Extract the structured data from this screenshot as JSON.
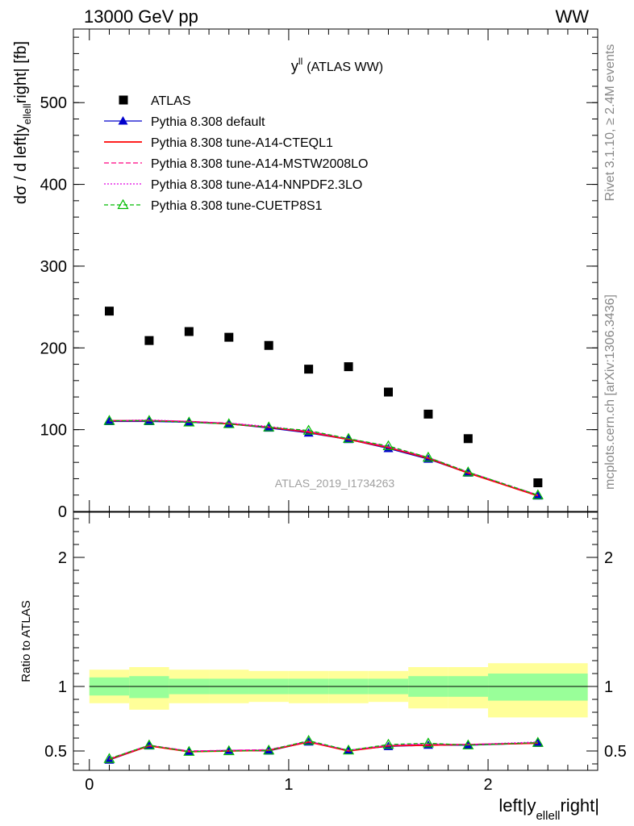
{
  "header": {
    "process": "13000 GeV pp",
    "channel": "WW"
  },
  "side_labels": {
    "rivet": "Rivet 3.1.10, ≥ 2.4M events",
    "mcplots": "mcplots.cern.ch [arXiv:1306.3436]"
  },
  "analysis_id": "ATLAS_2019_I1734263",
  "colors": {
    "data": "#000000",
    "default": "#0000cc",
    "cteql1": "#ff0000",
    "mstw": "#ff0080",
    "nnpdf": "#e000e0",
    "cuetp8s1": "#00bb00",
    "band_stat": "#99ff99",
    "band_total": "#ffff99"
  },
  "chart_data": [
    {
      "type": "scatter",
      "panel": "main",
      "title": "y",
      "title_sup": "ll",
      "title_suffix": "(ATLAS WW)",
      "ylabel": "dσ / d left|y",
      "ylabel_sub": "ellell",
      "ylabel_suffix": "right| [fb]",
      "xlim": [
        -0.08,
        2.55
      ],
      "ylim": [
        0,
        590
      ],
      "yticks": [
        0,
        100,
        200,
        300,
        400,
        500
      ],
      "x": [
        0.1,
        0.3,
        0.5,
        0.7,
        0.9,
        1.1,
        1.3,
        1.5,
        1.7,
        1.9,
        2.25
      ],
      "series": [
        {
          "key": "data",
          "name": "ATLAS",
          "marker": "square",
          "values": [
            245,
            209,
            220,
            213,
            203,
            174,
            177,
            146,
            119,
            89,
            35
          ]
        },
        {
          "key": "default",
          "name": "Pythia 8.308 default",
          "marker": "triangle",
          "dash": "",
          "values": [
            110,
            110,
            109,
            107,
            102,
            96,
            88,
            77,
            64,
            47,
            19
          ]
        },
        {
          "key": "cteql1",
          "name": "Pythia 8.308 tune-A14-CTEQL1",
          "marker": "none",
          "dash": "",
          "values": [
            111,
            111,
            110,
            107,
            103,
            97,
            88,
            78,
            65,
            47,
            19
          ]
        },
        {
          "key": "mstw",
          "name": "Pythia 8.308 tune-A14-MSTW2008LO",
          "marker": "none",
          "dash": "6,3",
          "values": [
            111,
            111,
            110,
            108,
            103,
            98,
            89,
            79,
            66,
            48,
            20
          ]
        },
        {
          "key": "nnpdf",
          "name": "Pythia 8.308 tune-A14-NNPDF2.3LO",
          "marker": "none",
          "dash": "2,2",
          "values": [
            111,
            112,
            110,
            108,
            104,
            98,
            89,
            79,
            66,
            48,
            20
          ]
        },
        {
          "key": "cuetp8s1",
          "name": "Pythia 8.308 tune-CUETP8S1",
          "marker": "triangle-open",
          "dash": "5,3",
          "values": [
            111,
            111,
            109,
            107,
            103,
            99,
            89,
            80,
            66,
            48,
            20
          ]
        }
      ]
    },
    {
      "type": "line",
      "panel": "ratio",
      "ylabel": "Ratio to ATLAS",
      "xlabel": "left|y",
      "xlabel_sub": "ellell",
      "xlabel_suffix": "right|",
      "xlim": [
        -0.08,
        2.55
      ],
      "ylim": [
        0.35,
        2.35
      ],
      "yticks": [
        0.5,
        1,
        2
      ],
      "yticklabels": [
        "0.5",
        "1",
        "2"
      ],
      "xticks": [
        0,
        1,
        2
      ],
      "xticklabels": [
        "0",
        "1",
        "2"
      ],
      "bins": [
        [
          0.0,
          0.2
        ],
        [
          0.2,
          0.4
        ],
        [
          0.4,
          0.6
        ],
        [
          0.6,
          0.8
        ],
        [
          0.8,
          1.0
        ],
        [
          1.0,
          1.2
        ],
        [
          1.2,
          1.4
        ],
        [
          1.4,
          1.6
        ],
        [
          1.6,
          1.8
        ],
        [
          1.8,
          2.0
        ],
        [
          2.0,
          2.5
        ]
      ],
      "band_stat": [
        [
          0.93,
          1.07
        ],
        [
          0.91,
          1.08
        ],
        [
          0.94,
          1.06
        ],
        [
          0.94,
          1.06
        ],
        [
          0.94,
          1.06
        ],
        [
          0.94,
          1.06
        ],
        [
          0.94,
          1.06
        ],
        [
          0.94,
          1.06
        ],
        [
          0.92,
          1.08
        ],
        [
          0.92,
          1.08
        ],
        [
          0.89,
          1.1
        ]
      ],
      "band_total": [
        [
          0.87,
          1.13
        ],
        [
          0.82,
          1.15
        ],
        [
          0.87,
          1.13
        ],
        [
          0.87,
          1.13
        ],
        [
          0.88,
          1.12
        ],
        [
          0.87,
          1.12
        ],
        [
          0.87,
          1.12
        ],
        [
          0.88,
          1.12
        ],
        [
          0.83,
          1.15
        ],
        [
          0.83,
          1.15
        ],
        [
          0.76,
          1.18
        ]
      ],
      "x": [
        0.1,
        0.3,
        0.5,
        0.7,
        0.9,
        1.1,
        1.3,
        1.5,
        1.7,
        1.9,
        2.25
      ],
      "series": [
        {
          "key": "default",
          "marker": "triangle",
          "dash": "",
          "values": [
            0.43,
            0.54,
            0.495,
            0.505,
            0.5,
            0.57,
            0.505,
            0.535,
            0.545,
            0.545,
            0.56
          ]
        },
        {
          "key": "cteql1",
          "marker": "none",
          "dash": "",
          "values": [
            0.435,
            0.54,
            0.495,
            0.5,
            0.505,
            0.57,
            0.5,
            0.54,
            0.545,
            0.55,
            0.56
          ]
        },
        {
          "key": "mstw",
          "marker": "none",
          "dash": "6,3",
          "values": [
            0.44,
            0.545,
            0.5,
            0.505,
            0.51,
            0.575,
            0.505,
            0.545,
            0.55,
            0.55,
            0.565
          ]
        },
        {
          "key": "nnpdf",
          "marker": "none",
          "dash": "2,2",
          "values": [
            0.44,
            0.545,
            0.5,
            0.505,
            0.51,
            0.575,
            0.505,
            0.545,
            0.555,
            0.55,
            0.57
          ]
        },
        {
          "key": "cuetp8s1",
          "marker": "triangle-open",
          "dash": "5,3",
          "values": [
            0.44,
            0.545,
            0.495,
            0.5,
            0.505,
            0.58,
            0.505,
            0.55,
            0.56,
            0.545,
            0.565
          ]
        }
      ]
    }
  ]
}
